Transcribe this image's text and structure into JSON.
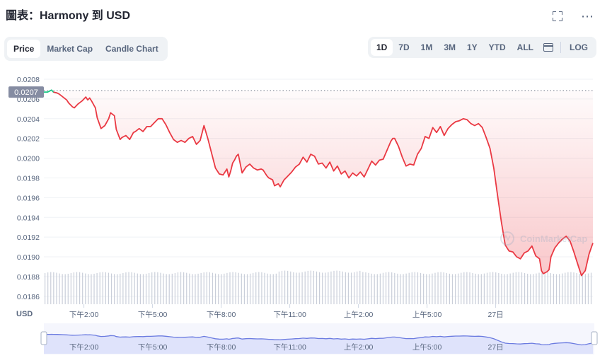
{
  "header": {
    "title": "圖表：Harmony 到 USD"
  },
  "icons": {
    "expand": "fullscreen-icon",
    "more": "more-icon",
    "calendar": "calendar-icon"
  },
  "tabs_left": [
    {
      "label": "Price",
      "active": true
    },
    {
      "label": "Market Cap",
      "active": false
    },
    {
      "label": "Candle Chart",
      "active": false
    }
  ],
  "tabs_right": [
    {
      "label": "1D",
      "active": true
    },
    {
      "label": "7D",
      "active": false
    },
    {
      "label": "1M",
      "active": false
    },
    {
      "label": "3M",
      "active": false
    },
    {
      "label": "1Y",
      "active": false
    },
    {
      "label": "YTD",
      "active": false
    },
    {
      "label": "ALL",
      "active": false
    }
  ],
  "log_label": "LOG",
  "watermark": "CoinMarketCap",
  "colors": {
    "line_down": "#ea3943",
    "line_up": "#16c784",
    "navigator_line": "#6b7be0",
    "navigator_fill": "#dfe3fb"
  },
  "chart_data": {
    "type": "line",
    "currency_label": "USD",
    "current_price_label": "0.0207",
    "yticks": [
      "0.0208",
      "0.0206",
      "0.0204",
      "0.0202",
      "0.0200",
      "0.0198",
      "0.0196",
      "0.0194",
      "0.0192",
      "0.0190",
      "0.0188",
      "0.0186"
    ],
    "ylim": [
      0.01852,
      0.02085
    ],
    "xlim": [
      0,
      288
    ],
    "xticks": [
      {
        "x": 21,
        "label": "下午2:00"
      },
      {
        "x": 57,
        "label": "下午5:00"
      },
      {
        "x": 93,
        "label": "下午8:00"
      },
      {
        "x": 129,
        "label": "下午11:00"
      },
      {
        "x": 165,
        "label": "上午2:00"
      },
      {
        "x": 201,
        "label": "上午5:00"
      },
      {
        "x": 237,
        "label": "27日"
      }
    ],
    "series": [
      {
        "x": [
          0,
          2,
          3,
          4,
          5,
          7,
          8,
          10,
          12,
          13,
          15,
          16,
          18,
          20,
          22,
          23,
          24,
          25,
          27,
          28,
          30,
          32,
          34,
          35,
          37,
          38,
          40,
          41,
          43,
          45,
          47,
          48,
          50,
          52,
          54,
          56,
          58,
          60,
          62,
          64,
          66,
          68,
          70,
          72,
          74,
          76,
          78,
          80,
          81,
          82,
          84,
          86,
          88,
          90,
          92,
          94,
          96,
          97,
          98,
          99,
          100,
          101,
          102,
          104,
          106,
          108,
          110,
          112,
          114,
          115,
          117,
          118,
          120,
          121,
          123,
          124,
          126,
          128,
          130,
          132,
          134,
          136,
          138,
          140,
          142,
          144,
          146,
          148,
          150,
          152,
          154,
          156,
          158,
          160,
          162,
          164,
          166,
          168,
          170,
          172,
          174,
          176,
          178,
          180,
          182,
          183,
          184,
          186,
          188,
          190,
          192,
          194,
          196,
          198,
          200,
          202,
          204,
          206,
          208,
          210,
          212,
          214,
          216,
          218,
          220,
          222,
          224,
          226,
          228,
          230,
          232,
          234,
          236,
          238,
          240,
          242,
          244,
          246,
          248,
          250,
          252,
          254,
          256,
          258,
          260,
          261,
          262,
          264,
          265,
          266,
          268,
          270,
          272,
          274,
          276,
          278,
          280,
          282,
          284,
          286,
          288
        ],
        "y": [
          0.02067,
          0.02067,
          0.02068,
          0.02069,
          0.02067,
          0.02066,
          0.02065,
          0.02062,
          0.02059,
          0.02056,
          0.02052,
          0.02051,
          0.02055,
          0.02058,
          0.02062,
          0.02059,
          0.02061,
          0.02058,
          0.02051,
          0.02041,
          0.0203,
          0.02033,
          0.0204,
          0.02046,
          0.02043,
          0.02029,
          0.02019,
          0.02021,
          0.02023,
          0.02019,
          0.02026,
          0.02027,
          0.0203,
          0.02027,
          0.02032,
          0.02032,
          0.02036,
          0.0204,
          0.0204,
          0.02034,
          0.02026,
          0.02019,
          0.02016,
          0.02018,
          0.02016,
          0.0202,
          0.02022,
          0.02014,
          0.02016,
          0.02018,
          0.02033,
          0.0202,
          0.02005,
          0.0199,
          0.01984,
          0.01983,
          0.01989,
          0.01981,
          0.01987,
          0.01995,
          0.01998,
          0.02002,
          0.02004,
          0.01985,
          0.01991,
          0.01994,
          0.0199,
          0.01988,
          0.01989,
          0.01988,
          0.01982,
          0.0198,
          0.01978,
          0.01972,
          0.01974,
          0.01971,
          0.01978,
          0.01982,
          0.01986,
          0.01991,
          0.01994,
          0.02001,
          0.01996,
          0.02004,
          0.02002,
          0.01994,
          0.01995,
          0.0199,
          0.01996,
          0.01987,
          0.01992,
          0.01984,
          0.01987,
          0.0198,
          0.01985,
          0.01982,
          0.01986,
          0.01981,
          0.01989,
          0.01997,
          0.01993,
          0.01998,
          0.01999,
          0.02008,
          0.02017,
          0.0202,
          0.0202,
          0.02012,
          0.02001,
          0.01992,
          0.01994,
          0.01993,
          0.02004,
          0.0201,
          0.02022,
          0.0202,
          0.02031,
          0.02026,
          0.02032,
          0.02023,
          0.0203,
          0.02034,
          0.02037,
          0.02038,
          0.0204,
          0.02039,
          0.02035,
          0.02033,
          0.02035,
          0.02031,
          0.02021,
          0.0201,
          0.0199,
          0.01962,
          0.01935,
          0.01912,
          0.01906,
          0.01905,
          0.019,
          0.01898,
          0.01904,
          0.01906,
          0.01911,
          0.01901,
          0.01898,
          0.01886,
          0.01883,
          0.01885,
          0.01887,
          0.019,
          0.01909,
          0.01914,
          0.01918,
          0.01921,
          0.01916,
          0.01905,
          0.01893,
          0.01881,
          0.01886,
          0.01903,
          0.01914
        ]
      }
    ],
    "volume": true,
    "grid": true,
    "navigator": true
  }
}
